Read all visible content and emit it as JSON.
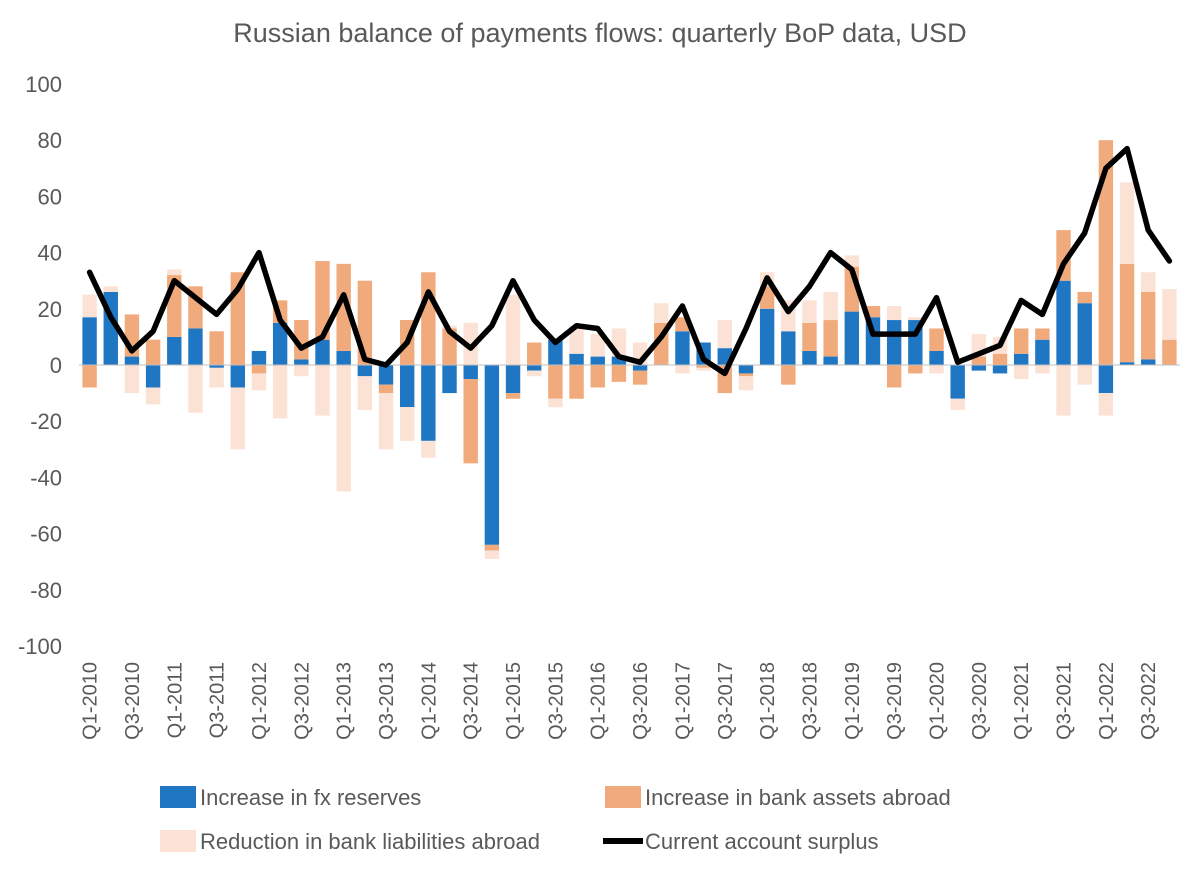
{
  "chart_data": {
    "type": "bar",
    "title": "Russian balance of payments flows: quarterly BoP data, USD",
    "stacked": true,
    "ylim": [
      -100,
      100
    ],
    "yticks": [
      100,
      80,
      60,
      40,
      20,
      0,
      -20,
      -40,
      -60,
      -80,
      -100
    ],
    "grid": false,
    "categories": [
      "Q1-2010",
      "Q2-2010",
      "Q3-2010",
      "Q4-2010",
      "Q1-2011",
      "Q2-2011",
      "Q3-2011",
      "Q4-2011",
      "Q1-2012",
      "Q2-2012",
      "Q3-2012",
      "Q4-2012",
      "Q1-2013",
      "Q2-2013",
      "Q3-2013",
      "Q4-2013",
      "Q1-2014",
      "Q2-2014",
      "Q3-2014",
      "Q4-2014",
      "Q1-2015",
      "Q2-2015",
      "Q3-2015",
      "Q4-2015",
      "Q1-2016",
      "Q2-2016",
      "Q3-2016",
      "Q4-2016",
      "Q1-2017",
      "Q2-2017",
      "Q3-2017",
      "Q4-2017",
      "Q1-2018",
      "Q2-2018",
      "Q3-2018",
      "Q4-2018",
      "Q1-2019",
      "Q2-2019",
      "Q3-2019",
      "Q4-2019",
      "Q1-2020",
      "Q2-2020",
      "Q3-2020",
      "Q4-2020",
      "Q1-2021",
      "Q2-2021",
      "Q3-2021",
      "Q4-2021",
      "Q1-2022",
      "Q2-2022",
      "Q3-2022",
      "Q4-2022"
    ],
    "xtick_labels": [
      "Q1-2010",
      "Q3-2010",
      "Q1-2011",
      "Q3-2011",
      "Q1-2012",
      "Q3-2012",
      "Q1-2013",
      "Q3-2013",
      "Q1-2014",
      "Q3-2014",
      "Q1-2015",
      "Q3-2015",
      "Q1-2016",
      "Q3-2016",
      "Q1-2017",
      "Q3-2017",
      "Q1-2018",
      "Q3-2018",
      "Q1-2019",
      "Q3-2019",
      "Q1-2020",
      "Q3-2020",
      "Q1-2021",
      "Q3-2021",
      "Q1-2022",
      "Q3-2022"
    ],
    "series": [
      {
        "name": "Increase in fx reserves",
        "kind": "bar",
        "color": "#1f77c4",
        "values": [
          17,
          26,
          3,
          -8,
          10,
          13,
          -1,
          -8,
          5,
          15,
          2,
          9,
          5,
          -4,
          -7,
          -15,
          -27,
          -10,
          -5,
          -64,
          -10,
          -2,
          9,
          4,
          3,
          3,
          -2,
          0,
          12,
          8,
          6,
          -3,
          20,
          12,
          5,
          3,
          19,
          17,
          16,
          16,
          5,
          -12,
          -2,
          -3,
          4,
          9,
          30,
          22,
          -10,
          1,
          2,
          0
        ]
      },
      {
        "name": "Increase in bank assets abroad",
        "kind": "bar",
        "color": "#f0aa7c",
        "values": [
          -8,
          0,
          15,
          9,
          22,
          15,
          12,
          33,
          -3,
          8,
          14,
          28,
          31,
          30,
          -3,
          16,
          33,
          13,
          -30,
          -2,
          -2,
          8,
          -12,
          -12,
          -8,
          -6,
          -5,
          15,
          5,
          -1,
          -10,
          -1,
          8,
          -7,
          10,
          13,
          16,
          4,
          -8,
          -3,
          8,
          0,
          3,
          4,
          9,
          4,
          18,
          4,
          80,
          35,
          24,
          9
        ]
      },
      {
        "name": "Reduction in bank liabilities abroad",
        "kind": "bar",
        "color": "#fbe2d5",
        "values": [
          8,
          2,
          -10,
          -6,
          2,
          -17,
          -7,
          -22,
          -6,
          -19,
          -4,
          -18,
          -45,
          -12,
          -20,
          -12,
          -6,
          1,
          15,
          -3,
          25,
          -2,
          -3,
          10,
          8,
          10,
          8,
          7,
          -3,
          -1,
          10,
          -5,
          5,
          11,
          8,
          10,
          4,
          0,
          5,
          1,
          -3,
          -4,
          8,
          6,
          -5,
          -3,
          -18,
          -7,
          -8,
          29,
          7,
          18
        ]
      },
      {
        "name": "Current account surplus",
        "kind": "line",
        "color": "#000000",
        "values": [
          33,
          17,
          5,
          12,
          30,
          24,
          18,
          27,
          40,
          16,
          6,
          10,
          25,
          2,
          0,
          8,
          26,
          12,
          6,
          14,
          30,
          16,
          8,
          14,
          13,
          3,
          1,
          10,
          21,
          2,
          -3,
          13,
          31,
          19,
          28,
          40,
          34,
          11,
          11,
          11,
          24,
          1,
          4,
          7,
          23,
          18,
          36,
          47,
          70,
          77,
          48,
          37
        ]
      }
    ]
  }
}
